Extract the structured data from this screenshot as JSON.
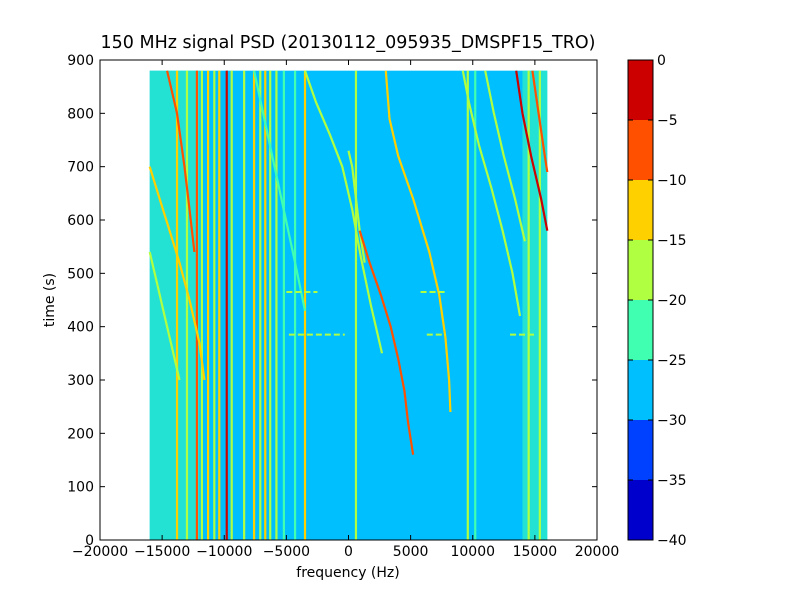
{
  "chart_data": {
    "type": "heatmap",
    "title": "150 MHz signal PSD (20130112_095935_DMSPF15_TRO)",
    "xlabel": "frequency (Hz)",
    "ylabel": "time (s)",
    "xlim": [
      -20000,
      20000
    ],
    "ylim": [
      0,
      900
    ],
    "x_ticks": [
      -20000,
      -15000,
      -10000,
      -5000,
      0,
      5000,
      10000,
      15000,
      20000
    ],
    "x_tick_labels": [
      "−20000",
      "−15000",
      "−10000",
      "−5000",
      "0",
      "5000",
      "10000",
      "15000",
      "20000"
    ],
    "y_ticks": [
      0,
      100,
      200,
      300,
      400,
      500,
      600,
      700,
      800,
      900
    ],
    "y_tick_labels": [
      "0",
      "100",
      "200",
      "300",
      "400",
      "500",
      "600",
      "700",
      "800",
      "900"
    ],
    "data_extent": {
      "freq": [
        -16000,
        16000
      ],
      "time": [
        0,
        880
      ]
    },
    "background_level_dB": -27,
    "colorbar": {
      "range": [
        -40,
        0
      ],
      "levels": [
        -40,
        -35,
        -30,
        -25,
        -20,
        -15,
        -10,
        -5,
        0
      ],
      "tick_labels": [
        "−40",
        "−35",
        "−30",
        "−25",
        "−20",
        "−15",
        "−10",
        "−5",
        "0"
      ],
      "colors": [
        "#0000cd",
        "#0040ff",
        "#00bfff",
        "#40ffb0",
        "#b0ff40",
        "#ffd000",
        "#ff5000",
        "#cd0000"
      ]
    },
    "vertical_lines": [
      {
        "f": -13800,
        "level": -12
      },
      {
        "f": -13000,
        "level": -18
      },
      {
        "f": -12200,
        "level": -6
      },
      {
        "f": -11800,
        "level": -18
      },
      {
        "f": -11300,
        "level": -12
      },
      {
        "f": -10800,
        "level": -18
      },
      {
        "f": -10400,
        "level": -12
      },
      {
        "f": -9800,
        "level": -2
      },
      {
        "f": -9400,
        "level": -18
      },
      {
        "f": -8400,
        "level": -18
      },
      {
        "f": -7600,
        "level": -12
      },
      {
        "f": -7100,
        "level": -18
      },
      {
        "f": -6700,
        "level": -12
      },
      {
        "f": -6300,
        "level": -18
      },
      {
        "f": -5800,
        "level": -18
      },
      {
        "f": -5200,
        "level": -22
      },
      {
        "f": -4300,
        "level": -22
      },
      {
        "f": -3500,
        "level": -12
      },
      {
        "f": 600,
        "level": -18
      },
      {
        "f": 9600,
        "level": -18
      },
      {
        "f": 10200,
        "level": -22
      },
      {
        "f": 14500,
        "level": -18
      },
      {
        "f": 15400,
        "level": -18
      }
    ],
    "sweep_tracks": [
      {
        "level": -8,
        "points": [
          [
            -14600,
            880
          ],
          [
            -13800,
            800
          ],
          [
            -13200,
            700
          ],
          [
            -12800,
            620
          ],
          [
            -12400,
            540
          ]
        ]
      },
      {
        "level": -12,
        "points": [
          [
            -16000,
            700
          ],
          [
            -15200,
            640
          ],
          [
            -14400,
            580
          ],
          [
            -13600,
            520
          ],
          [
            -12800,
            450
          ],
          [
            -12000,
            370
          ],
          [
            -11600,
            300
          ]
        ]
      },
      {
        "level": -18,
        "points": [
          [
            -16000,
            540
          ],
          [
            -15400,
            480
          ],
          [
            -14800,
            420
          ],
          [
            -14200,
            360
          ],
          [
            -13600,
            300
          ]
        ]
      },
      {
        "level": -22,
        "points": [
          [
            -7600,
            880
          ],
          [
            -6500,
            760
          ],
          [
            -5400,
            640
          ],
          [
            -4300,
            520
          ],
          [
            -3500,
            430
          ]
        ]
      },
      {
        "level": -20,
        "points": [
          [
            -3500,
            880
          ],
          [
            -2600,
            820
          ],
          [
            -1500,
            760
          ],
          [
            -500,
            700
          ],
          [
            300,
            620
          ],
          [
            1000,
            530
          ],
          [
            1800,
            440
          ],
          [
            2700,
            350
          ]
        ]
      },
      {
        "level": -20,
        "points": [
          [
            0,
            730
          ],
          [
            300,
            700
          ],
          [
            600,
            640
          ],
          [
            900,
            580
          ],
          [
            1300,
            520
          ]
        ]
      },
      {
        "level": -12,
        "points": [
          [
            3000,
            880
          ],
          [
            3300,
            790
          ],
          [
            4000,
            720
          ],
          [
            5200,
            640
          ],
          [
            6500,
            540
          ],
          [
            7300,
            460
          ],
          [
            7800,
            380
          ],
          [
            8100,
            300
          ],
          [
            8200,
            240
          ]
        ]
      },
      {
        "level": -8,
        "points": [
          [
            900,
            580
          ],
          [
            1700,
            520
          ],
          [
            2600,
            460
          ],
          [
            3400,
            400
          ],
          [
            4000,
            340
          ],
          [
            4500,
            280
          ],
          [
            4800,
            220
          ],
          [
            5200,
            160
          ]
        ]
      },
      {
        "level": -18,
        "points": [
          [
            9200,
            880
          ],
          [
            9700,
            820
          ],
          [
            10500,
            740
          ],
          [
            11500,
            660
          ],
          [
            12400,
            580
          ],
          [
            13200,
            500
          ],
          [
            13800,
            420
          ]
        ]
      },
      {
        "level": -18,
        "points": [
          [
            11000,
            880
          ],
          [
            11700,
            800
          ],
          [
            12500,
            720
          ],
          [
            13400,
            640
          ],
          [
            14200,
            560
          ]
        ]
      },
      {
        "level": -5,
        "points": [
          [
            13500,
            880
          ],
          [
            14000,
            800
          ],
          [
            14700,
            720
          ],
          [
            15500,
            640
          ],
          [
            16000,
            580
          ]
        ]
      },
      {
        "level": -10,
        "points": [
          [
            14800,
            880
          ],
          [
            15300,
            800
          ],
          [
            15800,
            720
          ],
          [
            16000,
            690
          ]
        ]
      }
    ],
    "impulse_rows": [
      {
        "t": 465,
        "level": -18,
        "segments": [
          [
            -5000,
            -2500
          ],
          [
            5800,
            7800
          ]
        ]
      },
      {
        "t": 385,
        "level": -18,
        "segments": [
          [
            -4800,
            -300
          ],
          [
            6300,
            7800
          ],
          [
            13000,
            15000
          ]
        ]
      }
    ]
  }
}
